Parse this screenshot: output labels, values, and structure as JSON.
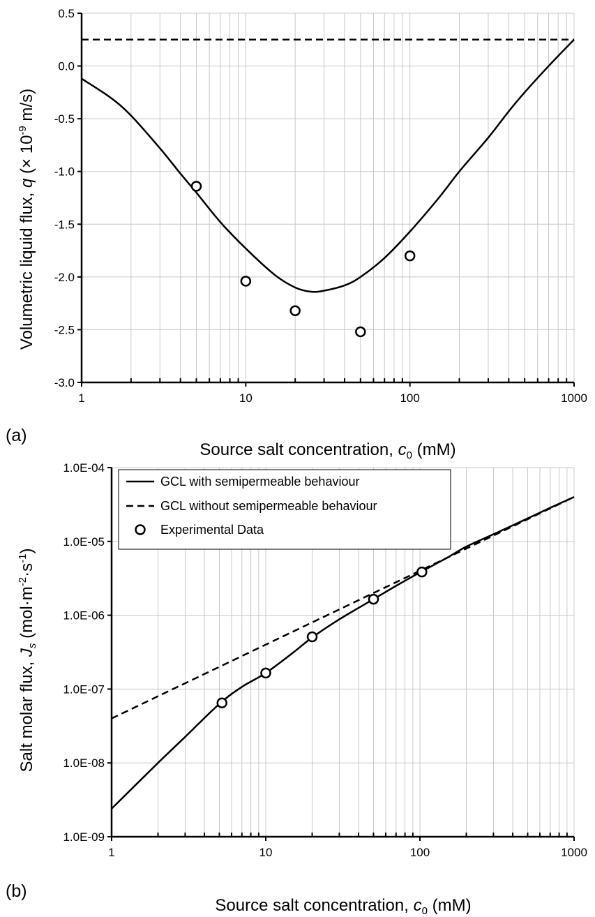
{
  "chart_data": [
    {
      "type": "line",
      "panel_label": "(a)",
      "xlabel_main": "Source salt concentration, ",
      "xlabel_var": "c",
      "xlabel_sub": "0",
      "xlabel_unit": " (mM)",
      "ylabel_main": "Volumetric liquid flux, ",
      "ylabel_var": "q",
      "ylabel_pre": " (× 10",
      "ylabel_sup": "-9",
      "ylabel_unit": " m/s)",
      "x_scale": "log",
      "xlim": [
        1,
        1000
      ],
      "ylim": [
        -3.0,
        0.5
      ],
      "grid": true,
      "x_ticks": [
        "1",
        "10",
        "100",
        "1000"
      ],
      "y_ticks": [
        "0.5",
        "0.0",
        "-0.5",
        "-1.0",
        "-1.5",
        "-2.0",
        "-2.5",
        "-3.0"
      ],
      "series": [
        {
          "style": "solid",
          "x": [
            1,
            1.5,
            2,
            3,
            4,
            5,
            7,
            10,
            15,
            20,
            25,
            30,
            40,
            50,
            70,
            100,
            150,
            200,
            300,
            400,
            500,
            700,
            1000
          ],
          "y": [
            -0.12,
            -0.3,
            -0.47,
            -0.78,
            -1.02,
            -1.2,
            -1.48,
            -1.73,
            -1.98,
            -2.1,
            -2.14,
            -2.13,
            -2.08,
            -2.0,
            -1.82,
            -1.57,
            -1.25,
            -1.0,
            -0.68,
            -0.43,
            -0.25,
            0.0,
            0.25
          ]
        },
        {
          "style": "dashed",
          "x": [
            1,
            1000
          ],
          "y": [
            0.25,
            0.25
          ]
        },
        {
          "style": "markers",
          "x": [
            5,
            10,
            20,
            50,
            100
          ],
          "y": [
            -1.14,
            -2.04,
            -2.32,
            -2.52,
            -1.8
          ]
        }
      ]
    },
    {
      "type": "line",
      "panel_label": "(b)",
      "xlabel_main": "Source salt concentration, ",
      "xlabel_var": "c",
      "xlabel_sub": "0",
      "xlabel_unit": " (mM)",
      "ylabel_main": "Salt molar flux, ",
      "ylabel_var": "J",
      "ylabel_varsub": "s",
      "ylabel_pre": " (mol·m",
      "ylabel_sup1": "-2",
      "ylabel_mid": "·s",
      "ylabel_sup2": "-1",
      "ylabel_end": ")",
      "x_scale": "log",
      "y_scale": "log",
      "xlim": [
        1,
        1000
      ],
      "ylim": [
        1e-09,
        0.0001
      ],
      "grid": true,
      "legend_position": "top-left",
      "x_ticks": [
        "1",
        "10",
        "100",
        "1000"
      ],
      "y_ticks": [
        "1.0E-04",
        "1.0E-05",
        "1.0E-06",
        "1.0E-07",
        "1.0E-08",
        "1.0E-09"
      ],
      "series": [
        {
          "name": "GCL with semipermeable behaviour",
          "style": "solid",
          "x": [
            1,
            2,
            3,
            5,
            7,
            10,
            15,
            20,
            30,
            50,
            70,
            100,
            150,
            200,
            300,
            500,
            700,
            1000
          ],
          "y": [
            2.4e-09,
            1e-08,
            2.25e-08,
            6.3e-08,
            1.07e-07,
            1.65e-07,
            3.1e-07,
            5e-07,
            8.8e-07,
            1.65e-06,
            2.5e-06,
            3.8e-06,
            6e-06,
            8.5e-06,
            1.25e-05,
            2.05e-05,
            2.85e-05,
            4e-05
          ]
        },
        {
          "name": "GCL without semipermeable behaviour",
          "style": "dashed",
          "x": [
            1,
            2,
            5,
            10,
            20,
            50,
            100,
            200,
            300,
            500,
            1000
          ],
          "y": [
            4e-08,
            8e-08,
            2e-07,
            4e-07,
            8e-07,
            2e-06,
            4e-06,
            8e-06,
            1.2e-05,
            2e-05,
            4e-05
          ]
        },
        {
          "name": "Experimental Data",
          "style": "markers",
          "x": [
            5.2,
            10,
            20,
            50,
            103
          ],
          "y": [
            6.5e-08,
            1.65e-07,
            5.1e-07,
            1.65e-06,
            3.85e-06
          ]
        }
      ]
    }
  ]
}
